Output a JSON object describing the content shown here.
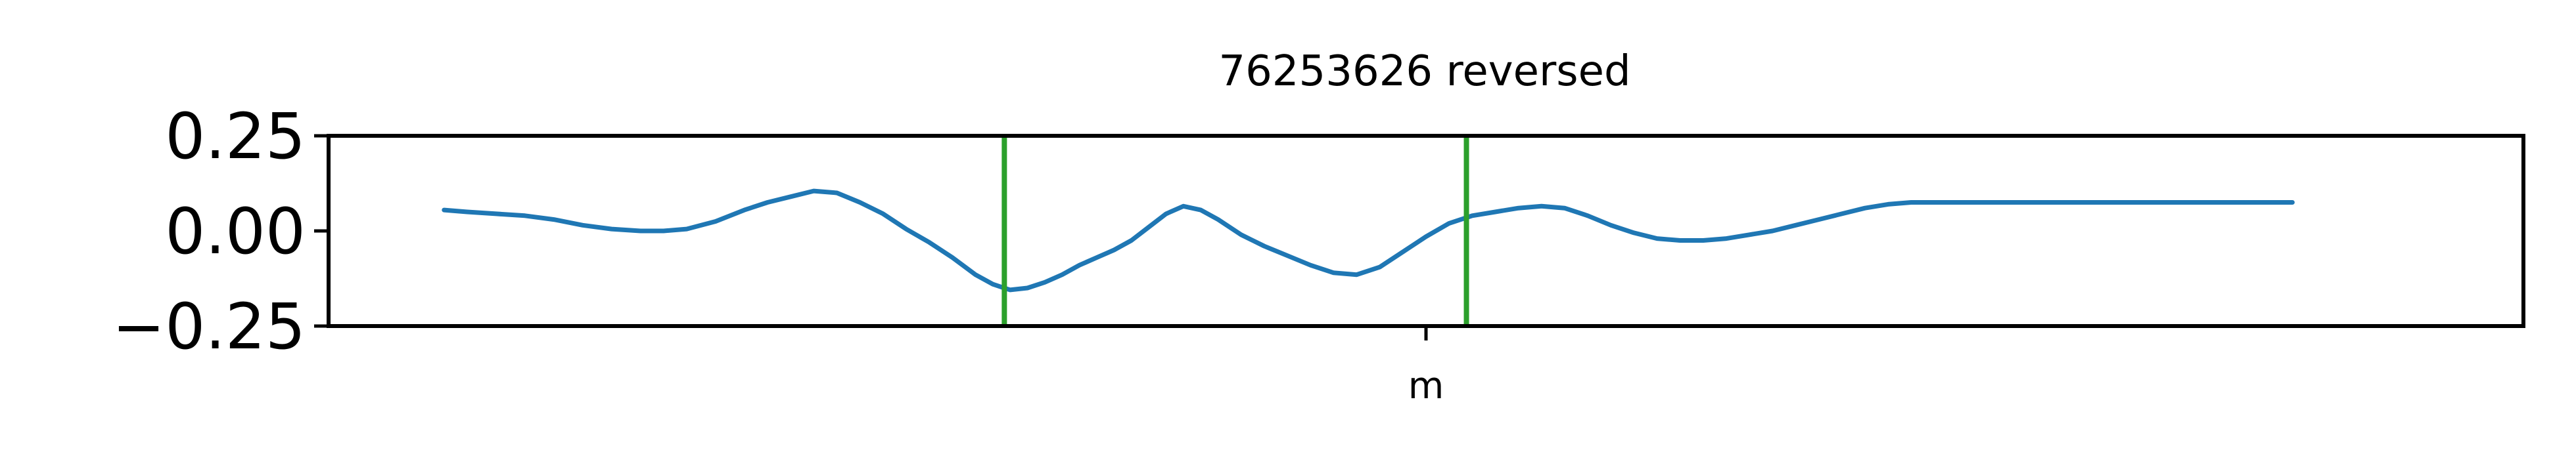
{
  "chart_data": {
    "type": "line",
    "title": "76253626 reversed",
    "xlabel": "",
    "ylabel": "",
    "ylim": [
      -0.25,
      0.25
    ],
    "yticks": [
      0.25,
      0.0,
      -0.25
    ],
    "ytick_labels": [
      "0.25",
      "0.00",
      "−0.25"
    ],
    "xticks": [
      "m"
    ],
    "grid": false,
    "series": [
      {
        "color": "#1f77b4",
        "x": [
          0.1,
          0.12,
          0.145,
          0.17,
          0.195,
          0.22,
          0.245,
          0.27,
          0.29,
          0.31,
          0.335,
          0.36,
          0.38,
          0.4,
          0.42,
          0.44,
          0.46,
          0.48,
          0.5,
          0.52,
          0.54,
          0.56,
          0.575,
          0.59,
          0.605,
          0.62,
          0.635,
          0.65,
          0.665,
          0.68,
          0.695,
          0.71,
          0.725,
          0.74,
          0.755,
          0.77,
          0.79,
          0.81,
          0.83,
          0.85,
          0.87,
          0.89,
          0.91,
          0.93,
          0.95,
          0.97,
          0.99,
          1.01,
          1.03,
          1.05,
          1.07,
          1.09,
          1.11,
          1.13,
          1.15,
          1.17,
          1.19,
          1.21,
          1.23,
          1.25,
          1.27,
          1.29,
          1.31,
          1.33,
          1.35,
          1.37,
          1.39,
          1.41,
          1.43,
          1.45,
          1.47,
          1.49,
          1.51,
          1.53,
          1.55,
          1.57,
          1.59,
          1.61,
          1.63,
          1.65,
          1.67,
          1.69,
          1.7
        ],
        "y": [
          0.055,
          0.05,
          0.045,
          0.04,
          0.03,
          0.015,
          0.005,
          0.0,
          0.0,
          0.005,
          0.025,
          0.055,
          0.075,
          0.09,
          0.105,
          0.1,
          0.075,
          0.045,
          0.005,
          -0.03,
          -0.07,
          -0.115,
          -0.14,
          -0.155,
          -0.15,
          -0.135,
          -0.115,
          -0.09,
          -0.07,
          -0.05,
          -0.025,
          0.01,
          0.045,
          0.065,
          0.055,
          0.03,
          -0.01,
          -0.04,
          -0.065,
          -0.09,
          -0.11,
          -0.115,
          -0.095,
          -0.055,
          -0.015,
          0.02,
          0.04,
          0.05,
          0.06,
          0.065,
          0.06,
          0.04,
          0.015,
          -0.005,
          -0.02,
          -0.025,
          -0.025,
          -0.02,
          -0.01,
          0.0,
          0.015,
          0.03,
          0.045,
          0.06,
          0.07,
          0.075,
          0.075,
          0.075,
          0.075,
          0.075,
          0.075,
          0.075,
          0.075,
          0.075,
          0.075,
          0.075,
          0.075,
          0.075,
          0.075,
          0.075,
          0.075,
          0.075,
          0.075
        ]
      }
    ],
    "vlines": [
      {
        "x": 0.585,
        "color": "#2ca02c"
      },
      {
        "x": 0.985,
        "color": "#2ca02c"
      }
    ]
  }
}
